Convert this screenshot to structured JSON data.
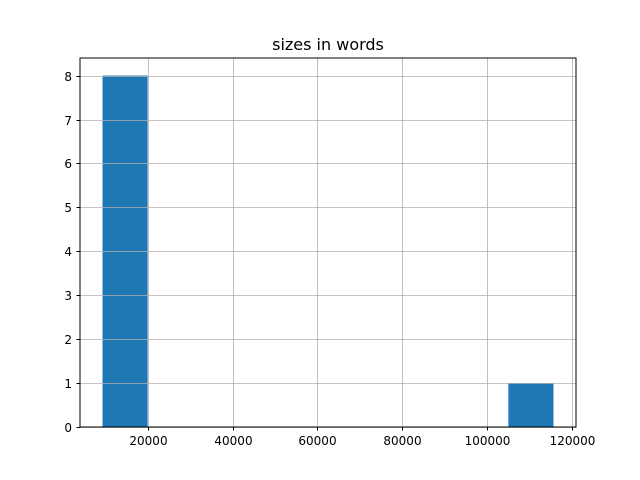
{
  "chart_data": {
    "type": "bar",
    "title": "sizes in words",
    "xlabel": "",
    "ylabel": "",
    "bin_edges": [
      9360,
      19984,
      30608,
      41232,
      51856,
      62480,
      73104,
      83728,
      94352,
      104976,
      115600
    ],
    "values": [
      8,
      0,
      0,
      0,
      0,
      0,
      0,
      0,
      0,
      1
    ],
    "xlim": [
      4048,
      120912
    ],
    "ylim": [
      0,
      8.4
    ],
    "xticks": [
      20000,
      40000,
      60000,
      80000,
      100000,
      120000
    ],
    "yticks": [
      0,
      1,
      2,
      3,
      4,
      5,
      6,
      7,
      8
    ],
    "grid": true,
    "colors": {
      "bar": "#1f77b4",
      "grid": "#b0b0b0"
    }
  }
}
